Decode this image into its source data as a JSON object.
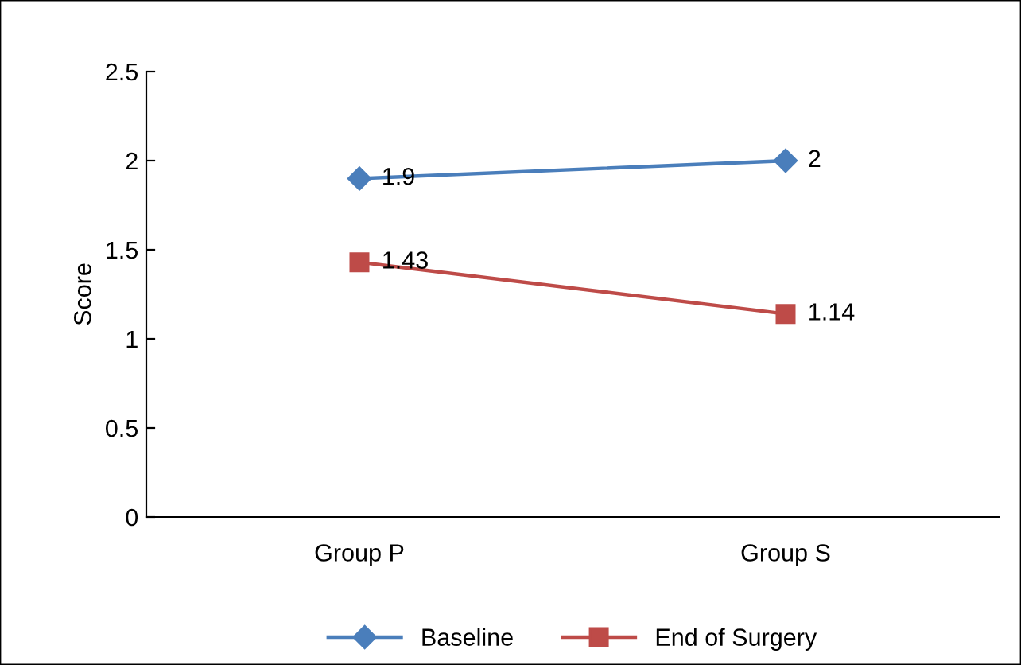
{
  "chart_data": {
    "type": "line",
    "ylabel": "Score",
    "categories": [
      "Group P",
      "Group S"
    ],
    "series": [
      {
        "name": "Baseline",
        "color": "#4a7ebb",
        "marker": "diamond",
        "values": [
          1.9,
          2
        ]
      },
      {
        "name": "End of Surgery",
        "color": "#be4b48",
        "marker": "square",
        "values": [
          1.43,
          1.14
        ]
      }
    ],
    "ylim": [
      0,
      2.5
    ],
    "yticks": [
      0,
      0.5,
      1,
      1.5,
      2,
      2.5
    ],
    "grid": false,
    "legend": "bottom",
    "data_labels": true
  }
}
